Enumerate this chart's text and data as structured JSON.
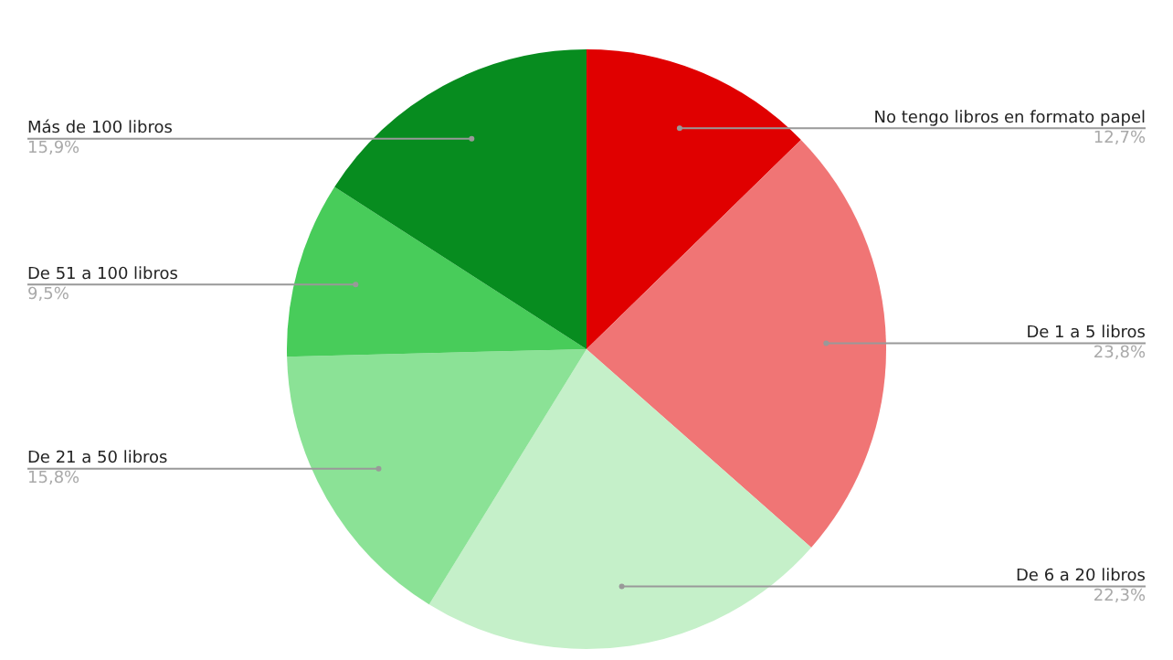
{
  "chart_data": {
    "type": "pie",
    "categories": [
      "No tengo libros en formato papel",
      "De 1 a 5 libros",
      "De 6 a 20 libros",
      "De 21 a 50 libros",
      "De 51 a 100 libros",
      "Más de 100 libros"
    ],
    "values": [
      12.7,
      23.8,
      22.3,
      15.8,
      9.5,
      15.9
    ],
    "colors": [
      "#e00000",
      "#f07575",
      "#c5f0c9",
      "#8be296",
      "#48cc5a",
      "#078c1f"
    ],
    "value_labels": [
      "12,7%",
      "23,8%",
      "22,3%",
      "15,8%",
      "9,5%",
      "15,9%"
    ],
    "legend": false
  }
}
